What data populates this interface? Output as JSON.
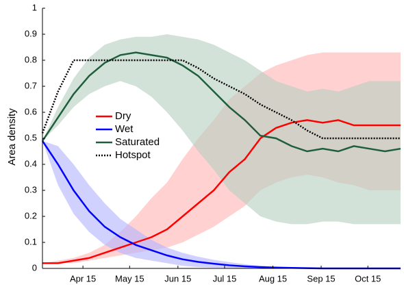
{
  "chart_data": {
    "type": "line",
    "y_label": "Area density",
    "x": [
      "Mar 20",
      "Mar 30",
      "Apr 9",
      "Apr 19",
      "Apr 29",
      "May 9",
      "May 19",
      "May 29",
      "Jun 8",
      "Jun 18",
      "Jun 28",
      "Jul 8",
      "Jul 18",
      "Jul 28",
      "Aug 7",
      "Aug 17",
      "Aug 27",
      "Sep 6",
      "Sep 16",
      "Sep 26",
      "Oct 6",
      "Oct 16",
      "Oct 26",
      "Nov 5"
    ],
    "xlim": [
      "Mar 20",
      "Nov 5"
    ],
    "xticks": [
      "Apr 15",
      "May 15",
      "Jun 15",
      "Jul 15",
      "Aug 15",
      "Sep 15",
      "Oct 15"
    ],
    "ylim": [
      0,
      1
    ],
    "yticks": [
      0,
      0.1,
      0.2,
      0.3,
      0.4,
      0.5,
      0.6,
      0.7,
      0.8,
      0.9,
      1
    ],
    "legend": "center-left",
    "series": [
      {
        "name": "Dry",
        "color": "#ff0000",
        "band_color": "#ffb3b3",
        "style": "solid",
        "values": [
          0.02,
          0.02,
          0.03,
          0.04,
          0.06,
          0.08,
          0.1,
          0.12,
          0.15,
          0.2,
          0.25,
          0.3,
          0.37,
          0.42,
          0.5,
          0.54,
          0.56,
          0.57,
          0.56,
          0.57,
          0.55,
          0.55,
          0.55,
          0.55
        ],
        "lower": [
          0.02,
          0.02,
          0.02,
          0.03,
          0.04,
          0.05,
          0.06,
          0.07,
          0.08,
          0.1,
          0.13,
          0.16,
          0.2,
          0.24,
          0.3,
          0.33,
          0.35,
          0.36,
          0.35,
          0.33,
          0.32,
          0.3,
          0.3,
          0.3
        ],
        "upper": [
          0.02,
          0.03,
          0.04,
          0.06,
          0.09,
          0.14,
          0.2,
          0.27,
          0.33,
          0.42,
          0.5,
          0.57,
          0.65,
          0.7,
          0.75,
          0.78,
          0.8,
          0.82,
          0.83,
          0.83,
          0.83,
          0.83,
          0.83,
          0.83
        ]
      },
      {
        "name": "Wet",
        "color": "#0000ff",
        "band_color": "#b3b3ff",
        "style": "solid",
        "values": [
          0.49,
          0.4,
          0.3,
          0.22,
          0.16,
          0.12,
          0.09,
          0.07,
          0.05,
          0.035,
          0.025,
          0.018,
          0.012,
          0.008,
          0.005,
          0.003,
          0.002,
          0.001,
          0,
          0,
          0,
          0,
          0,
          0
        ],
        "lower": [
          0.49,
          0.32,
          0.21,
          0.14,
          0.09,
          0.06,
          0.04,
          0.03,
          0.02,
          0.01,
          0.005,
          0.003,
          0.002,
          0.001,
          0,
          0,
          0,
          0,
          0,
          0,
          0,
          0,
          0,
          0
        ],
        "upper": [
          0.49,
          0.47,
          0.4,
          0.32,
          0.25,
          0.19,
          0.15,
          0.11,
          0.08,
          0.06,
          0.045,
          0.033,
          0.024,
          0.016,
          0.011,
          0.008,
          0.005,
          0.003,
          0.002,
          0.001,
          0,
          0,
          0,
          0
        ]
      },
      {
        "name": "Saturated",
        "color": "#1e5e3a",
        "band_color": "#b5cfc0",
        "style": "solid",
        "values": [
          0.49,
          0.58,
          0.67,
          0.74,
          0.79,
          0.82,
          0.83,
          0.82,
          0.81,
          0.78,
          0.74,
          0.68,
          0.62,
          0.57,
          0.51,
          0.5,
          0.47,
          0.45,
          0.46,
          0.45,
          0.47,
          0.46,
          0.45,
          0.46
        ],
        "lower": [
          0.49,
          0.55,
          0.62,
          0.67,
          0.7,
          0.72,
          0.7,
          0.66,
          0.6,
          0.53,
          0.45,
          0.38,
          0.3,
          0.25,
          0.2,
          0.18,
          0.17,
          0.17,
          0.18,
          0.18,
          0.17,
          0.17,
          0.17,
          0.17
        ],
        "upper": [
          0.49,
          0.62,
          0.73,
          0.81,
          0.86,
          0.88,
          0.89,
          0.89,
          0.9,
          0.89,
          0.88,
          0.86,
          0.83,
          0.8,
          0.76,
          0.72,
          0.7,
          0.68,
          0.69,
          0.68,
          0.7,
          0.72,
          0.72,
          0.72
        ]
      },
      {
        "name": "Hotspot",
        "color": "#000000",
        "style": "dotted",
        "values": [
          0.52,
          0.68,
          0.8,
          0.8,
          0.8,
          0.8,
          0.8,
          0.8,
          0.8,
          0.8,
          0.77,
          0.73,
          0.7,
          0.67,
          0.63,
          0.6,
          0.57,
          0.53,
          0.5,
          0.5,
          0.5,
          0.5,
          0.5,
          0.5
        ]
      }
    ]
  }
}
